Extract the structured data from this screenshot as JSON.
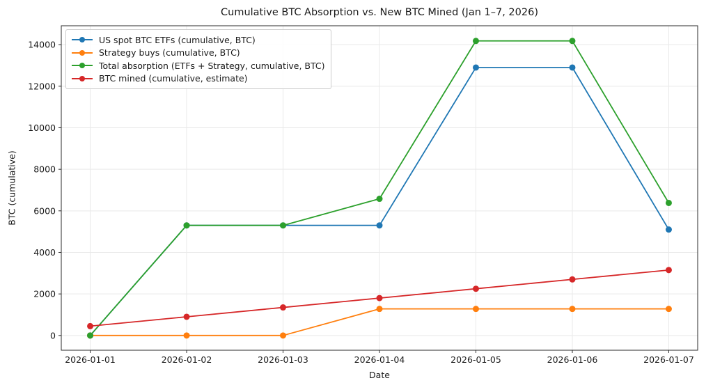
{
  "chart_data": {
    "type": "line",
    "title": "Cumulative BTC Absorption vs. New BTC Mined (Jan 1–7, 2026)",
    "xlabel": "Date",
    "ylabel": "BTC (cumulative)",
    "categories": [
      "2026-01-01",
      "2026-01-02",
      "2026-01-03",
      "2026-01-04",
      "2026-01-05",
      "2026-01-06",
      "2026-01-07"
    ],
    "series": [
      {
        "name": "US spot BTC ETFs (cumulative, BTC)",
        "color": "#1f77b4",
        "values": [
          0,
          5300,
          5300,
          5300,
          12900,
          12900,
          5100
        ]
      },
      {
        "name": "Strategy buys (cumulative, BTC)",
        "color": "#ff7f0e",
        "values": [
          0,
          0,
          0,
          1280,
          1280,
          1280,
          1280
        ]
      },
      {
        "name": "Total absorption (ETFs + Strategy, cumulative, BTC)",
        "color": "#2ca02c",
        "values": [
          0,
          5300,
          5300,
          6580,
          14180,
          14180,
          6380
        ]
      },
      {
        "name": "BTC mined (cumulative, estimate)",
        "color": "#d62728",
        "values": [
          450,
          900,
          1350,
          1800,
          2250,
          2700,
          3150
        ]
      }
    ],
    "y_ticks": [
      0,
      2000,
      4000,
      6000,
      8000,
      10000,
      12000,
      14000
    ],
    "ylim": [
      -710,
      14910
    ],
    "xlim": [
      -0.3,
      6.3
    ],
    "grid": true,
    "legend_position": "upper-left",
    "marker": "circle",
    "styles": {
      "grid_color": "#e9e9e9",
      "spine_color": "#2b2b2b",
      "background": "#ffffff"
    }
  }
}
